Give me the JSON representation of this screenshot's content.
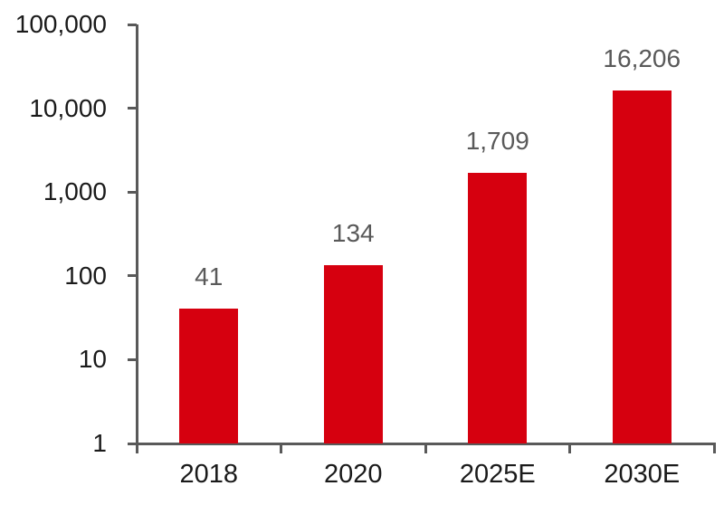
{
  "chart_data": {
    "type": "bar",
    "title": "",
    "xlabel": "",
    "ylabel": "",
    "categories": [
      "2018",
      "2020",
      "2025E",
      "2030E"
    ],
    "values": [
      41,
      134,
      1709,
      16206
    ],
    "value_labels": [
      "41",
      "134",
      "1,709",
      "16,206"
    ],
    "y_scale": "log10",
    "ylim": [
      1,
      100000
    ],
    "y_ticks": [
      {
        "value": 1,
        "label": "1"
      },
      {
        "value": 10,
        "label": "10"
      },
      {
        "value": 100,
        "label": "100"
      },
      {
        "value": 1000,
        "label": "1,000"
      },
      {
        "value": 10000,
        "label": "10,000"
      },
      {
        "value": 100000,
        "label": "100,000"
      }
    ],
    "grid": false,
    "legend": "none",
    "colors": {
      "bar": "#d6000f",
      "value_label": "#595959",
      "axis": "#595959",
      "tick_label": "#1a1a1a"
    }
  }
}
